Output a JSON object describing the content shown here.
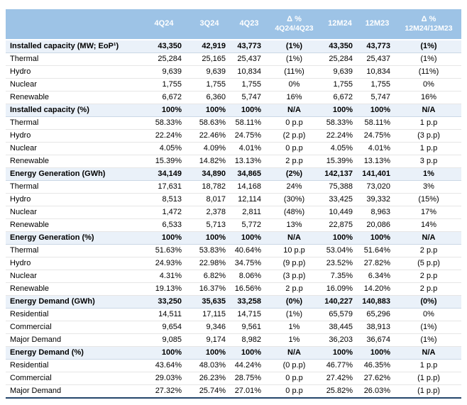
{
  "colors": {
    "header_bg": "#9DC3E6",
    "header_text": "#FFFFFF",
    "section_bg": "#EAF1F9",
    "row_divider": "#E6E6E6",
    "bottom_border": "#24466B"
  },
  "table": {
    "columns": [
      {
        "id": "label",
        "lines": [
          ""
        ]
      },
      {
        "id": "4q24",
        "lines": [
          "4Q24"
        ]
      },
      {
        "id": "3q24",
        "lines": [
          "3Q24"
        ]
      },
      {
        "id": "4q23",
        "lines": [
          "4Q23"
        ]
      },
      {
        "id": "delta-4q24-4q23",
        "lines": [
          "Δ %",
          "4Q24/4Q23"
        ]
      },
      {
        "id": "12m24",
        "lines": [
          "12M24"
        ]
      },
      {
        "id": "12m23",
        "lines": [
          "12M23"
        ]
      },
      {
        "id": "delta-12m24-12m23",
        "lines": [
          "Δ %",
          "12M24/12M23"
        ]
      }
    ],
    "rows": [
      {
        "type": "section",
        "label": "Installed capacity (MW; EoP¹)",
        "values": [
          "43,350",
          "42,919",
          "43,773",
          "(1%)",
          "43,350",
          "43,773",
          "(1%)"
        ]
      },
      {
        "type": "regular",
        "label": "Thermal",
        "values": [
          "25,284",
          "25,165",
          "25,437",
          "(1%)",
          "25,284",
          "25,437",
          "(1%)"
        ]
      },
      {
        "type": "regular",
        "label": "Hydro",
        "values": [
          "9,639",
          "9,639",
          "10,834",
          "(11%)",
          "9,639",
          "10,834",
          "(11%)"
        ]
      },
      {
        "type": "regular",
        "label": "Nuclear",
        "values": [
          "1,755",
          "1,755",
          "1,755",
          "0%",
          "1,755",
          "1,755",
          "0%"
        ]
      },
      {
        "type": "regular",
        "label": "Renewable",
        "values": [
          "6,672",
          "6,360",
          "5,747",
          "16%",
          "6,672",
          "5,747",
          "16%"
        ]
      },
      {
        "type": "section",
        "label": "Installed capacity (%)",
        "values": [
          "100%",
          "100%",
          "100%",
          "N/A",
          "100%",
          "100%",
          "N/A"
        ]
      },
      {
        "type": "regular",
        "label": "Thermal",
        "values": [
          "58.33%",
          "58.63%",
          "58.11%",
          "0 p.p",
          "58.33%",
          "58.11%",
          "1 p.p"
        ]
      },
      {
        "type": "regular",
        "label": "Hydro",
        "values": [
          "22.24%",
          "22.46%",
          "24.75%",
          "(2 p.p)",
          "22.24%",
          "24.75%",
          "(3 p.p)"
        ]
      },
      {
        "type": "regular",
        "label": "Nuclear",
        "values": [
          "4.05%",
          "4.09%",
          "4.01%",
          "0 p.p",
          "4.05%",
          "4.01%",
          "1 p.p"
        ]
      },
      {
        "type": "regular",
        "label": "Renewable",
        "values": [
          "15.39%",
          "14.82%",
          "13.13%",
          "2 p.p",
          "15.39%",
          "13.13%",
          "3 p.p"
        ]
      },
      {
        "type": "section",
        "label": "Energy Generation (GWh)",
        "values": [
          "34,149",
          "34,890",
          "34,865",
          "(2%)",
          "142,137",
          "141,401",
          "1%"
        ]
      },
      {
        "type": "regular",
        "label": "Thermal",
        "values": [
          "17,631",
          "18,782",
          "14,168",
          "24%",
          "75,388",
          "73,020",
          "3%"
        ]
      },
      {
        "type": "regular",
        "label": "Hydro",
        "values": [
          "8,513",
          "8,017",
          "12,114",
          "(30%)",
          "33,425",
          "39,332",
          "(15%)"
        ]
      },
      {
        "type": "regular",
        "label": "Nuclear",
        "values": [
          "1,472",
          "2,378",
          "2,811",
          "(48%)",
          "10,449",
          "8,963",
          "17%"
        ]
      },
      {
        "type": "regular",
        "label": "Renewable",
        "values": [
          "6,533",
          "5,713",
          "5,772",
          "13%",
          "22,875",
          "20,086",
          "14%"
        ]
      },
      {
        "type": "section",
        "label": "Energy Generation (%)",
        "values": [
          "100%",
          "100%",
          "100%",
          "N/A",
          "100%",
          "100%",
          "N/A"
        ]
      },
      {
        "type": "regular",
        "label": "Thermal",
        "values": [
          "51.63%",
          "53.83%",
          "40.64%",
          "10 p.p",
          "53.04%",
          "51.64%",
          "2 p.p"
        ]
      },
      {
        "type": "regular",
        "label": "Hydro",
        "values": [
          "24.93%",
          "22.98%",
          "34.75%",
          "(9 p.p)",
          "23.52%",
          "27.82%",
          "(5 p.p)"
        ]
      },
      {
        "type": "regular",
        "label": "Nuclear",
        "values": [
          "4.31%",
          "6.82%",
          "8.06%",
          "(3 p.p)",
          "7.35%",
          "6.34%",
          "2 p.p"
        ]
      },
      {
        "type": "regular",
        "label": "Renewable",
        "values": [
          "19.13%",
          "16.37%",
          "16.56%",
          "2 p.p",
          "16.09%",
          "14.20%",
          "2 p.p"
        ]
      },
      {
        "type": "section",
        "label": "Energy Demand (GWh)",
        "values": [
          "33,250",
          "35,635",
          "33,258",
          "(0%)",
          "140,227",
          "140,883",
          "(0%)"
        ]
      },
      {
        "type": "regular",
        "label": "Residential",
        "values": [
          "14,511",
          "17,115",
          "14,715",
          "(1%)",
          "65,579",
          "65,296",
          "0%"
        ]
      },
      {
        "type": "regular",
        "label": "Commercial",
        "values": [
          "9,654",
          "9,346",
          "9,561",
          "1%",
          "38,445",
          "38,913",
          "(1%)"
        ]
      },
      {
        "type": "regular",
        "label": "Major Demand",
        "values": [
          "9,085",
          "9,174",
          "8,982",
          "1%",
          "36,203",
          "36,674",
          "(1%)"
        ]
      },
      {
        "type": "section",
        "label": "Energy Demand (%)",
        "values": [
          "100%",
          "100%",
          "100%",
          "N/A",
          "100%",
          "100%",
          "N/A"
        ]
      },
      {
        "type": "regular",
        "label": "Residential",
        "values": [
          "43.64%",
          "48.03%",
          "44.24%",
          "(0 p.p)",
          "46.77%",
          "46.35%",
          "1 p.p"
        ]
      },
      {
        "type": "regular",
        "label": "Commercial",
        "values": [
          "29.03%",
          "26.23%",
          "28.75%",
          "0 p.p",
          "27.42%",
          "27.62%",
          "(1 p.p)"
        ]
      },
      {
        "type": "regular",
        "label": "Major Demand",
        "values": [
          "27.32%",
          "25.74%",
          "27.01%",
          "0 p.p",
          "25.82%",
          "26.03%",
          "(1 p.p)"
        ]
      }
    ]
  }
}
